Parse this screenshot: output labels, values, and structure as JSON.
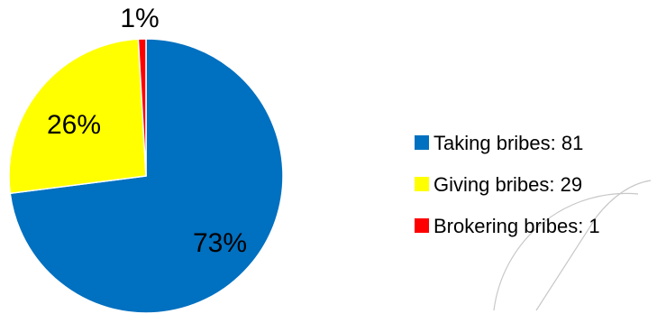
{
  "chart_data": {
    "type": "pie",
    "title": "",
    "legend_position": "right",
    "slices": [
      {
        "label": "Taking bribes: 81",
        "value": 81,
        "percent_label": "73%",
        "color": "#0070C0"
      },
      {
        "label": "Giving bribes: 29",
        "value": 29,
        "percent_label": "26%",
        "color": "#FFFF00"
      },
      {
        "label": "Brokering bribes: 1",
        "value": 1,
        "percent_label": "1%",
        "color": "#FF0000"
      }
    ]
  }
}
